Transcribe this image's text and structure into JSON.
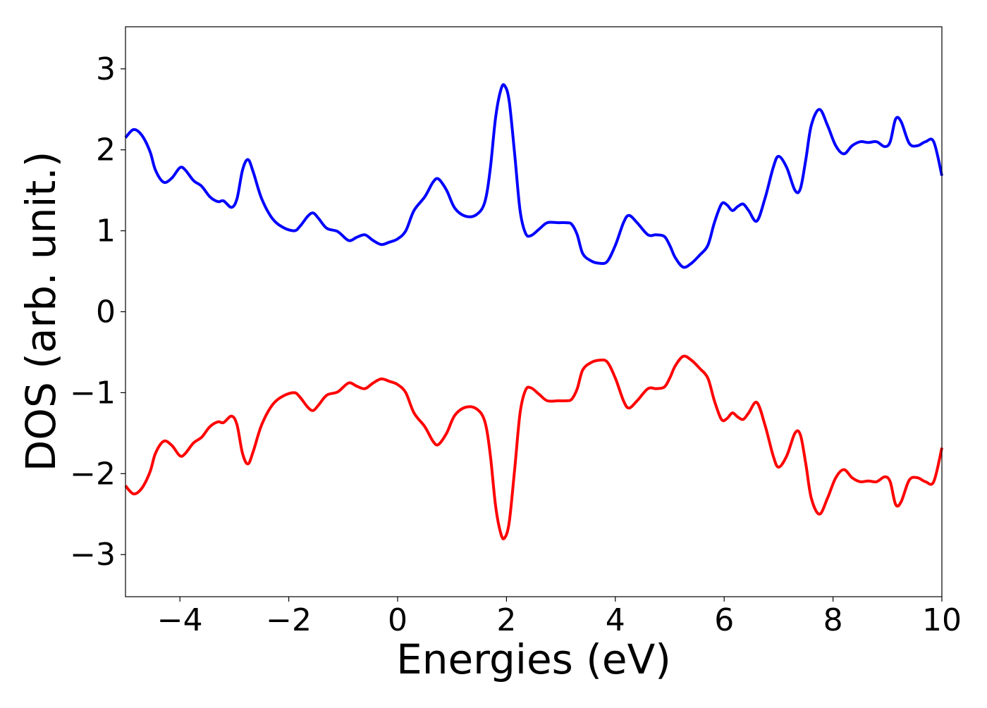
{
  "chart_data": {
    "type": "line",
    "title": "",
    "xlabel": "Energies (eV)",
    "ylabel": "DOS (arb. unit.)",
    "xlim": [
      -5,
      10
    ],
    "ylim": [
      -3.52,
      3.52
    ],
    "grid": false,
    "legend": "none",
    "x_ticks": [
      {
        "value": -4,
        "label": "−4"
      },
      {
        "value": -2,
        "label": "−2"
      },
      {
        "value": 0,
        "label": "0"
      },
      {
        "value": 2,
        "label": "2"
      },
      {
        "value": 4,
        "label": "4"
      },
      {
        "value": 6,
        "label": "6"
      },
      {
        "value": 8,
        "label": "8"
      },
      {
        "value": 10,
        "label": "10"
      }
    ],
    "y_ticks": [
      {
        "value": 3,
        "label": "3"
      },
      {
        "value": 2,
        "label": "2"
      },
      {
        "value": 1,
        "label": "1"
      },
      {
        "value": 0,
        "label": "0"
      },
      {
        "value": -1,
        "label": "−1"
      },
      {
        "value": -2,
        "label": "−2"
      },
      {
        "value": -3,
        "label": "−3"
      }
    ],
    "series": [
      {
        "color": "#0000ff",
        "points": [
          [
            -5.0,
            2.15
          ],
          [
            -4.85,
            2.25
          ],
          [
            -4.7,
            2.18
          ],
          [
            -4.55,
            1.98
          ],
          [
            -4.45,
            1.75
          ],
          [
            -4.3,
            1.6
          ],
          [
            -4.15,
            1.65
          ],
          [
            -4.0,
            1.78
          ],
          [
            -3.9,
            1.75
          ],
          [
            -3.75,
            1.62
          ],
          [
            -3.6,
            1.55
          ],
          [
            -3.45,
            1.42
          ],
          [
            -3.3,
            1.36
          ],
          [
            -3.2,
            1.37
          ],
          [
            -3.05,
            1.29
          ],
          [
            -2.95,
            1.4
          ],
          [
            -2.85,
            1.75
          ],
          [
            -2.75,
            1.88
          ],
          [
            -2.65,
            1.72
          ],
          [
            -2.5,
            1.4
          ],
          [
            -2.3,
            1.15
          ],
          [
            -2.1,
            1.04
          ],
          [
            -1.9,
            1.0
          ],
          [
            -1.8,
            1.05
          ],
          [
            -1.65,
            1.18
          ],
          [
            -1.55,
            1.22
          ],
          [
            -1.45,
            1.15
          ],
          [
            -1.3,
            1.03
          ],
          [
            -1.1,
            0.99
          ],
          [
            -0.9,
            0.88
          ],
          [
            -0.75,
            0.92
          ],
          [
            -0.6,
            0.95
          ],
          [
            -0.45,
            0.88
          ],
          [
            -0.3,
            0.83
          ],
          [
            -0.15,
            0.86
          ],
          [
            0.0,
            0.9
          ],
          [
            0.15,
            1.0
          ],
          [
            0.3,
            1.25
          ],
          [
            0.5,
            1.42
          ],
          [
            0.65,
            1.6
          ],
          [
            0.75,
            1.64
          ],
          [
            0.9,
            1.5
          ],
          [
            1.05,
            1.28
          ],
          [
            1.25,
            1.18
          ],
          [
            1.45,
            1.2
          ],
          [
            1.6,
            1.35
          ],
          [
            1.7,
            1.75
          ],
          [
            1.8,
            2.4
          ],
          [
            1.9,
            2.75
          ],
          [
            1.97,
            2.79
          ],
          [
            2.05,
            2.6
          ],
          [
            2.15,
            1.95
          ],
          [
            2.25,
            1.25
          ],
          [
            2.35,
            0.97
          ],
          [
            2.45,
            0.94
          ],
          [
            2.6,
            1.02
          ],
          [
            2.75,
            1.1
          ],
          [
            2.95,
            1.1
          ],
          [
            3.1,
            1.1
          ],
          [
            3.2,
            1.08
          ],
          [
            3.3,
            0.95
          ],
          [
            3.4,
            0.72
          ],
          [
            3.55,
            0.63
          ],
          [
            3.7,
            0.6
          ],
          [
            3.85,
            0.62
          ],
          [
            4.0,
            0.82
          ],
          [
            4.15,
            1.1
          ],
          [
            4.25,
            1.19
          ],
          [
            4.4,
            1.1
          ],
          [
            4.6,
            0.95
          ],
          [
            4.75,
            0.95
          ],
          [
            4.9,
            0.93
          ],
          [
            5.0,
            0.82
          ],
          [
            5.1,
            0.67
          ],
          [
            5.25,
            0.55
          ],
          [
            5.4,
            0.6
          ],
          [
            5.55,
            0.7
          ],
          [
            5.7,
            0.82
          ],
          [
            5.82,
            1.1
          ],
          [
            5.95,
            1.33
          ],
          [
            6.05,
            1.32
          ],
          [
            6.15,
            1.25
          ],
          [
            6.25,
            1.3
          ],
          [
            6.35,
            1.33
          ],
          [
            6.45,
            1.25
          ],
          [
            6.6,
            1.12
          ],
          [
            6.75,
            1.4
          ],
          [
            6.9,
            1.78
          ],
          [
            7.0,
            1.92
          ],
          [
            7.15,
            1.78
          ],
          [
            7.3,
            1.5
          ],
          [
            7.4,
            1.52
          ],
          [
            7.5,
            1.88
          ],
          [
            7.6,
            2.3
          ],
          [
            7.75,
            2.5
          ],
          [
            7.9,
            2.3
          ],
          [
            8.05,
            2.05
          ],
          [
            8.2,
            1.95
          ],
          [
            8.35,
            2.05
          ],
          [
            8.5,
            2.1
          ],
          [
            8.65,
            2.09
          ],
          [
            8.8,
            2.1
          ],
          [
            8.95,
            2.04
          ],
          [
            9.05,
            2.1
          ],
          [
            9.15,
            2.38
          ],
          [
            9.25,
            2.35
          ],
          [
            9.4,
            2.08
          ],
          [
            9.55,
            2.05
          ],
          [
            9.7,
            2.1
          ],
          [
            9.85,
            2.1
          ],
          [
            10.0,
            1.68
          ]
        ]
      },
      {
        "color": "#ff0000",
        "points": [
          [
            -5.0,
            -2.15
          ],
          [
            -4.85,
            -2.25
          ],
          [
            -4.7,
            -2.18
          ],
          [
            -4.55,
            -1.98
          ],
          [
            -4.45,
            -1.75
          ],
          [
            -4.3,
            -1.6
          ],
          [
            -4.15,
            -1.65
          ],
          [
            -4.0,
            -1.78
          ],
          [
            -3.9,
            -1.75
          ],
          [
            -3.75,
            -1.62
          ],
          [
            -3.6,
            -1.55
          ],
          [
            -3.45,
            -1.42
          ],
          [
            -3.3,
            -1.36
          ],
          [
            -3.2,
            -1.37
          ],
          [
            -3.05,
            -1.29
          ],
          [
            -2.95,
            -1.4
          ],
          [
            -2.85,
            -1.75
          ],
          [
            -2.75,
            -1.88
          ],
          [
            -2.65,
            -1.72
          ],
          [
            -2.5,
            -1.4
          ],
          [
            -2.3,
            -1.15
          ],
          [
            -2.1,
            -1.04
          ],
          [
            -1.9,
            -1.0
          ],
          [
            -1.8,
            -1.05
          ],
          [
            -1.65,
            -1.18
          ],
          [
            -1.55,
            -1.22
          ],
          [
            -1.45,
            -1.15
          ],
          [
            -1.3,
            -1.03
          ],
          [
            -1.1,
            -0.99
          ],
          [
            -0.9,
            -0.88
          ],
          [
            -0.75,
            -0.92
          ],
          [
            -0.6,
            -0.95
          ],
          [
            -0.45,
            -0.88
          ],
          [
            -0.3,
            -0.83
          ],
          [
            -0.15,
            -0.86
          ],
          [
            0.0,
            -0.9
          ],
          [
            0.15,
            -1.0
          ],
          [
            0.3,
            -1.25
          ],
          [
            0.5,
            -1.42
          ],
          [
            0.65,
            -1.6
          ],
          [
            0.75,
            -1.64
          ],
          [
            0.9,
            -1.5
          ],
          [
            1.05,
            -1.28
          ],
          [
            1.25,
            -1.18
          ],
          [
            1.45,
            -1.2
          ],
          [
            1.6,
            -1.35
          ],
          [
            1.7,
            -1.75
          ],
          [
            1.8,
            -2.4
          ],
          [
            1.9,
            -2.75
          ],
          [
            1.97,
            -2.79
          ],
          [
            2.05,
            -2.6
          ],
          [
            2.15,
            -1.95
          ],
          [
            2.25,
            -1.25
          ],
          [
            2.35,
            -0.97
          ],
          [
            2.45,
            -0.94
          ],
          [
            2.6,
            -1.02
          ],
          [
            2.75,
            -1.1
          ],
          [
            2.95,
            -1.1
          ],
          [
            3.1,
            -1.1
          ],
          [
            3.2,
            -1.08
          ],
          [
            3.3,
            -0.95
          ],
          [
            3.4,
            -0.72
          ],
          [
            3.55,
            -0.63
          ],
          [
            3.7,
            -0.6
          ],
          [
            3.85,
            -0.62
          ],
          [
            4.0,
            -0.82
          ],
          [
            4.15,
            -1.1
          ],
          [
            4.25,
            -1.19
          ],
          [
            4.4,
            -1.1
          ],
          [
            4.6,
            -0.95
          ],
          [
            4.75,
            -0.95
          ],
          [
            4.9,
            -0.93
          ],
          [
            5.0,
            -0.82
          ],
          [
            5.1,
            -0.67
          ],
          [
            5.25,
            -0.55
          ],
          [
            5.4,
            -0.6
          ],
          [
            5.55,
            -0.7
          ],
          [
            5.7,
            -0.82
          ],
          [
            5.82,
            -1.1
          ],
          [
            5.95,
            -1.33
          ],
          [
            6.05,
            -1.32
          ],
          [
            6.15,
            -1.25
          ],
          [
            6.25,
            -1.3
          ],
          [
            6.35,
            -1.33
          ],
          [
            6.45,
            -1.25
          ],
          [
            6.6,
            -1.12
          ],
          [
            6.75,
            -1.4
          ],
          [
            6.9,
            -1.78
          ],
          [
            7.0,
            -1.92
          ],
          [
            7.15,
            -1.78
          ],
          [
            7.3,
            -1.5
          ],
          [
            7.4,
            -1.52
          ],
          [
            7.5,
            -1.88
          ],
          [
            7.6,
            -2.3
          ],
          [
            7.75,
            -2.5
          ],
          [
            7.9,
            -2.3
          ],
          [
            8.05,
            -2.05
          ],
          [
            8.2,
            -1.95
          ],
          [
            8.35,
            -2.05
          ],
          [
            8.5,
            -2.1
          ],
          [
            8.65,
            -2.09
          ],
          [
            8.8,
            -2.1
          ],
          [
            8.95,
            -2.04
          ],
          [
            9.05,
            -2.1
          ],
          [
            9.15,
            -2.38
          ],
          [
            9.25,
            -2.35
          ],
          [
            9.4,
            -2.08
          ],
          [
            9.55,
            -2.05
          ],
          [
            9.7,
            -2.1
          ],
          [
            9.85,
            -2.1
          ],
          [
            10.0,
            -1.68
          ]
        ]
      }
    ]
  }
}
